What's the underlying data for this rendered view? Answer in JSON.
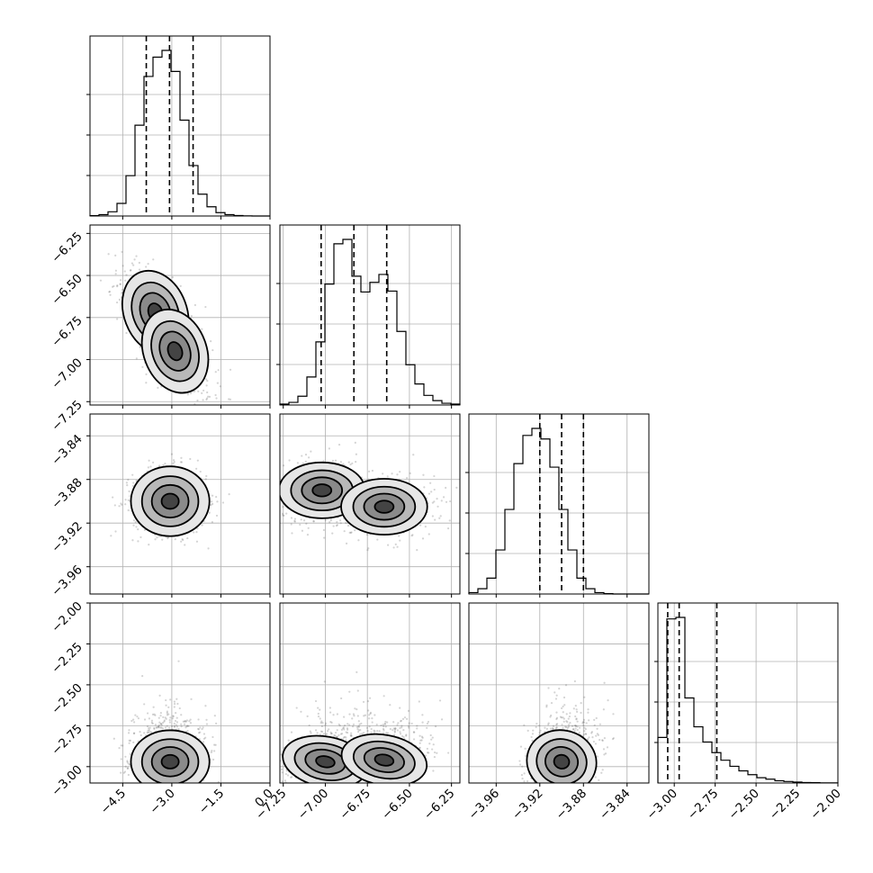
{
  "chart_data": {
    "type": "corner",
    "parameters": [
      {
        "range": [
          -5.5,
          0.0
        ],
        "ticks": [
          -4.5,
          -3.0,
          -1.5,
          0.0
        ],
        "tick_labels": [
          "−4.5",
          "−3.0",
          "−1.5",
          "0.0"
        ],
        "center": -3.05,
        "sigma": 0.75
      },
      {
        "range": [
          -7.27,
          -6.2
        ],
        "ticks": [
          -7.25,
          -7.0,
          -6.75,
          -6.5,
          -6.25
        ],
        "tick_labels": [
          "−7.25",
          "−7.00",
          "−6.75",
          "−6.50",
          "−6.25"
        ],
        "center": -6.83,
        "sigma": 0.2
      },
      {
        "range": [
          -3.985,
          -3.82
        ],
        "ticks": [
          -3.96,
          -3.92,
          -3.88,
          -3.84
        ],
        "tick_labels": [
          "−3.96",
          "−3.92",
          "−3.88",
          "−3.84"
        ],
        "center": -3.9,
        "sigma": 0.02
      },
      {
        "range": [
          -3.1,
          -2.0
        ],
        "ticks": [
          -3.0,
          -2.75,
          -2.5,
          -2.25,
          -2.0
        ],
        "tick_labels": [
          "−3.00",
          "−2.75",
          "−2.50",
          "−2.25",
          "−2.00"
        ],
        "center": -2.96,
        "sigma": 0.12
      }
    ],
    "histograms": [
      {
        "param": 0,
        "bin_edges": [
          -5.5,
          -5.225,
          -4.95,
          -4.675,
          -4.4,
          -4.125,
          -3.85,
          -3.575,
          -3.3,
          -3.025,
          -2.75,
          -2.475,
          -2.2,
          -1.925,
          -1.65,
          -1.375,
          -1.1,
          -0.825,
          -0.55,
          -0.275,
          0.0
        ],
        "counts": [
          2,
          8,
          25,
          75,
          240,
          540,
          830,
          945,
          985,
          860,
          570,
          300,
          130,
          55,
          20,
          8,
          3,
          1,
          0,
          0
        ],
        "quantiles": [
          -3.78,
          -3.07,
          -2.35
        ]
      },
      {
        "param": 1,
        "bin_edges": [
          -7.27,
          -7.2165,
          -7.163,
          -7.1095,
          -7.056,
          -7.0025,
          -6.949,
          -6.8955,
          -6.842,
          -6.7885,
          -6.735,
          -6.6815,
          -6.628,
          -6.5745,
          -6.521,
          -6.4675,
          -6.414,
          -6.3605,
          -6.307,
          -6.2535,
          -6.2
        ],
        "counts": [
          5,
          15,
          50,
          160,
          360,
          690,
          920,
          945,
          735,
          645,
          700,
          745,
          650,
          420,
          230,
          120,
          55,
          25,
          10,
          5
        ],
        "quantiles": [
          -7.025,
          -6.83,
          -6.635
        ]
      },
      {
        "param": 2,
        "bin_edges": [
          -3.985,
          -3.97675,
          -3.9685,
          -3.96025,
          -3.952,
          -3.94375,
          -3.9355,
          -3.92725,
          -3.919,
          -3.91075,
          -3.9025,
          -3.89425,
          -3.886,
          -3.87775,
          -3.8695,
          -3.86125,
          -3.853,
          -3.84475,
          -3.8365,
          -3.82825,
          -3.82
        ],
        "counts": [
          8,
          30,
          90,
          250,
          480,
          740,
          900,
          940,
          880,
          720,
          480,
          250,
          90,
          30,
          8,
          2,
          0,
          0,
          0,
          0
        ],
        "quantiles": [
          -3.92,
          -3.9,
          -3.88
        ]
      },
      {
        "param": 3,
        "bin_edges": [
          -3.1,
          -3.045,
          -2.99,
          -2.935,
          -2.88,
          -2.825,
          -2.77,
          -2.715,
          -2.66,
          -2.605,
          -2.55,
          -2.495,
          -2.44,
          -2.385,
          -2.33,
          -2.275,
          -2.22,
          -2.165,
          -2.11,
          -2.055,
          -2.0
        ],
        "counts": [
          300,
          1080,
          1090,
          560,
          370,
          270,
          200,
          150,
          110,
          80,
          55,
          35,
          25,
          15,
          10,
          6,
          3,
          2,
          1,
          1
        ],
        "quantiles": [
          -3.04,
          -2.97,
          -2.74
        ]
      }
    ],
    "pair_plots": [
      {
        "x": 0,
        "y": 1,
        "modes": [
          [
            -3.5,
            -6.72
          ],
          [
            -2.9,
            -6.95
          ]
        ],
        "correlation": -0.6
      },
      {
        "x": 0,
        "y": 2,
        "modes": [
          [
            -3.05,
            -3.9
          ]
        ],
        "correlation": 0.0
      },
      {
        "x": 1,
        "y": 2,
        "modes": [
          [
            -7.02,
            -3.89
          ],
          [
            -6.65,
            -3.905
          ]
        ],
        "correlation": 0.0
      },
      {
        "x": 0,
        "y": 3,
        "modes": [
          [
            -3.05,
            -2.97
          ]
        ],
        "correlation": 0.0,
        "tail": "upward"
      },
      {
        "x": 1,
        "y": 3,
        "modes": [
          [
            -7.0,
            -2.97
          ],
          [
            -6.65,
            -2.96
          ]
        ],
        "correlation": 0.3,
        "tail": "upward"
      },
      {
        "x": 2,
        "y": 3,
        "modes": [
          [
            -3.9,
            -2.97
          ]
        ],
        "correlation": 0.35,
        "tail": "upward"
      }
    ],
    "contour_levels": 4,
    "grid": true
  }
}
